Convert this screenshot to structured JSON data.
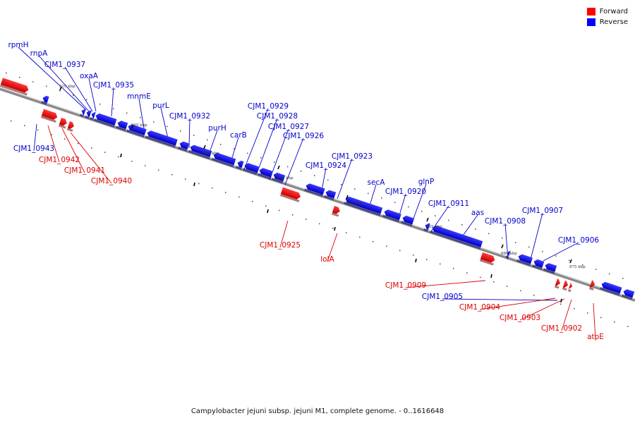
{
  "legend": {
    "forward_label": "Forward",
    "reverse_label": "Reverse",
    "forward_color": "#ff0000",
    "reverse_color": "#0000ff"
  },
  "caption": "Campylobacter jejuni subsp. jejuni M1, complete genome. - 0..1616648",
  "ruler_labels": [
    "910 kbp",
    "905 kbp",
    "900 kbp",
    "895 kbp",
    "890 kbp",
    "885 kbp",
    "880 kbp",
    "875 kbp"
  ],
  "genes_reverse": [
    "rpmH",
    "rnpA",
    "CJM1_0937",
    "oxaA",
    "CJM1_0935",
    "mnmE",
    "purL",
    "CJM1_0932",
    "purH",
    "carB",
    "CJM1_0929",
    "CJM1_0928",
    "CJM1_0927",
    "CJM1_0926",
    "CJM1_0924",
    "CJM1_0923",
    "secA",
    "CJM1_0920",
    "glnP",
    "CJM1_0911",
    "aas",
    "CJM1_0908",
    "CJM1_0907",
    "CJM1_0906",
    "CJM1_0943",
    "CJM1_0905"
  ],
  "genes_forward": [
    "CJM1_0942",
    "CJM1_0941",
    "CJM1_0940",
    "CJM1_0925",
    "lolA",
    "CJM1_0909",
    "CJM1_0904",
    "CJM1_0903",
    "CJM1_0902",
    "atpE"
  ]
}
